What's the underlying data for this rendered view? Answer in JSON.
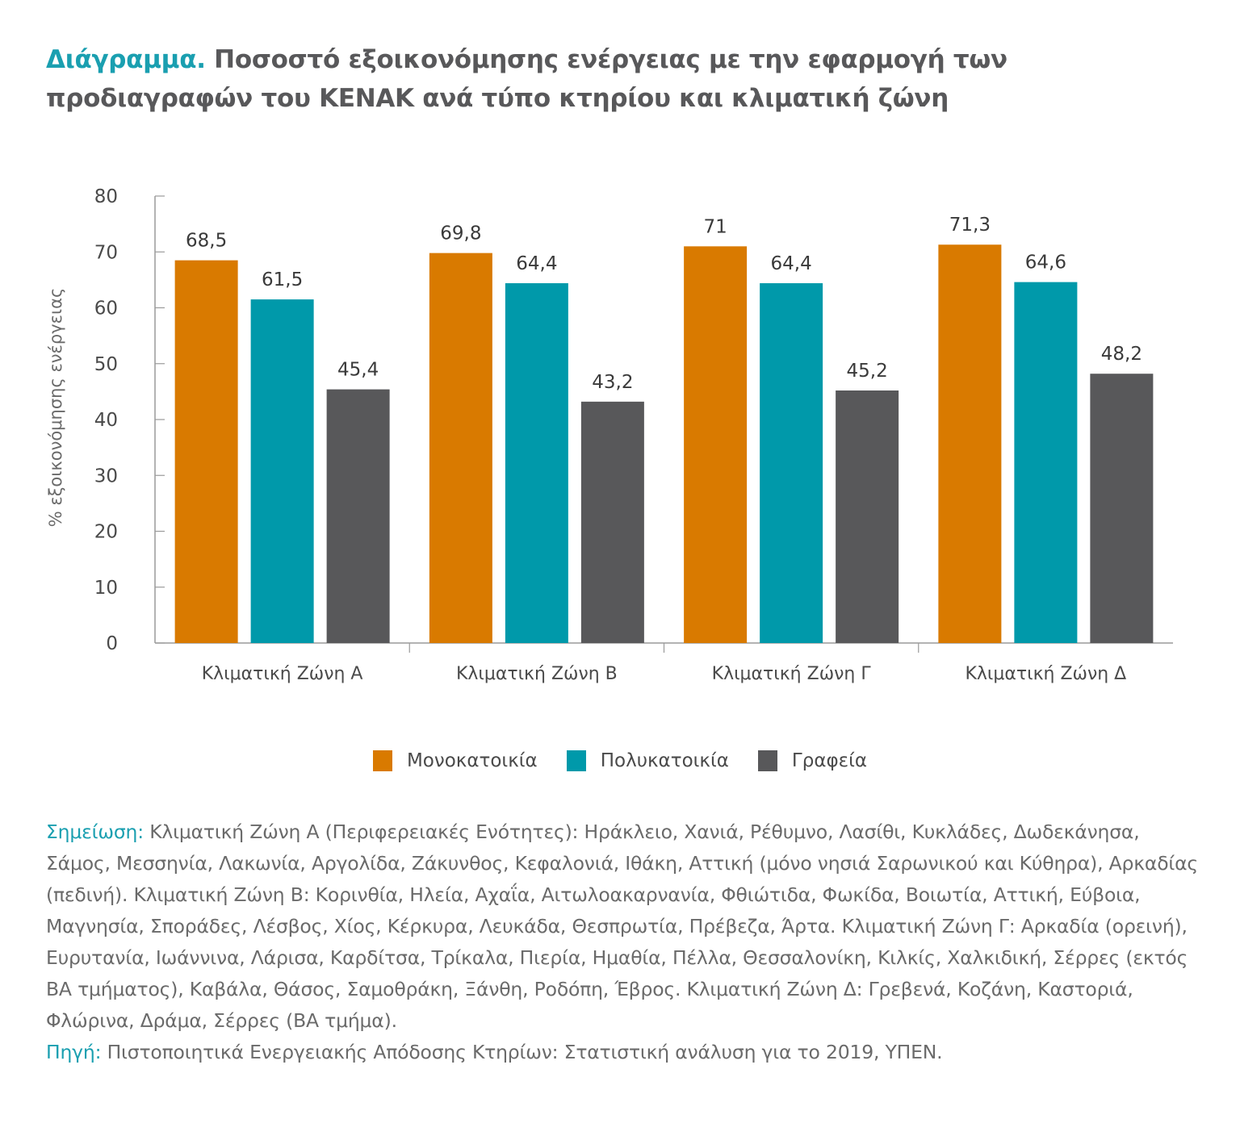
{
  "title": {
    "lead": "Διάγραμμα.",
    "text": "Ποσοστό εξοικονόμησης ενέργειας με την εφαρμογή των προδιαγραφών του ΚΕΝΑΚ ανά τύπο κτηρίου και κλιματική ζώνη"
  },
  "chart_data": {
    "type": "bar",
    "categories": [
      "Κλιματική Ζώνη Α",
      "Κλιματική Ζώνη Β",
      "Κλιματική Ζώνη Γ",
      "Κλιματική Ζώνη Δ"
    ],
    "series": [
      {
        "name": "Μονοκατοικία",
        "color": "#d97a00",
        "values": [
          68.5,
          69.8,
          71,
          71.3
        ],
        "labels": [
          "68,5",
          "69,8",
          "71",
          "71,3"
        ]
      },
      {
        "name": "Πολυκατοικία",
        "color": "#0099aa",
        "values": [
          61.5,
          64.4,
          64.4,
          64.6
        ],
        "labels": [
          "61,5",
          "64,4",
          "64,4",
          "64,6"
        ]
      },
      {
        "name": "Γραφεία",
        "color": "#58585a",
        "values": [
          45.4,
          43.2,
          45.2,
          48.2
        ],
        "labels": [
          "45,4",
          "43,2",
          "45,2",
          "48,2"
        ]
      }
    ],
    "ylabel": "% εξοικονόμησης ενέργειας",
    "xlabel": "",
    "ylim": [
      0,
      80
    ],
    "yticks": [
      0,
      10,
      20,
      30,
      40,
      50,
      60,
      70,
      80
    ],
    "grid": false,
    "legend_position": "bottom"
  },
  "notes": {
    "note_label": "Σημείωση:",
    "note_text": " Κλιματική Ζώνη Α (Περιφερειακές Ενότητες): Ηράκλειο, Χανιά, Ρέθυμνο, Λασίθι, Κυκλάδες, Δωδεκάνησα, Σάμος, Μεσσηνία, Λακωνία, Αργολίδα, Ζάκυνθος, Κεφαλονιά, Ιθάκη, Αττική (μόνο νησιά Σαρωνικού και Κύθηρα), Αρκαδίας (πεδινή). Κλιματική Ζώνη Β: Κορινθία, Ηλεία, Αχαΐα, Αιτωλοακαρνανία, Φθιώτιδα, Φωκίδα, Βοιωτία, Αττική, Εύβοια, Μαγνησία, Σποράδες, Λέσβος, Χίος, Κέρκυρα, Λευκάδα, Θεσπρωτία, Πρέβεζα, Άρτα. Κλιματική Ζώνη Γ: Αρκαδία (ορεινή), Ευρυτανία, Ιωάννινα, Λάρισα, Καρδίτσα, Τρίκαλα, Πιερία, Ημαθία, Πέλλα, Θεσσαλονίκη, Κιλκίς, Χαλκιδική, Σέρρες (εκτός ΒΑ τμήματος), Καβάλα, Θάσος, Σαμοθράκη, Ξάνθη, Ροδόπη, Έβρος. Κλιματική Ζώνη Δ: Γρεβενά, Κοζάνη, Καστοριά, Φλώρινα, Δράμα, Σέρρες (ΒΑ τμήμα).",
    "source_label": "Πηγή:",
    "source_text": " Πιστοποιητικά Ενεργειακής Απόδοσης Κτηρίων: Στατιστική ανάλυση για το 2019, ΥΠΕΝ."
  }
}
